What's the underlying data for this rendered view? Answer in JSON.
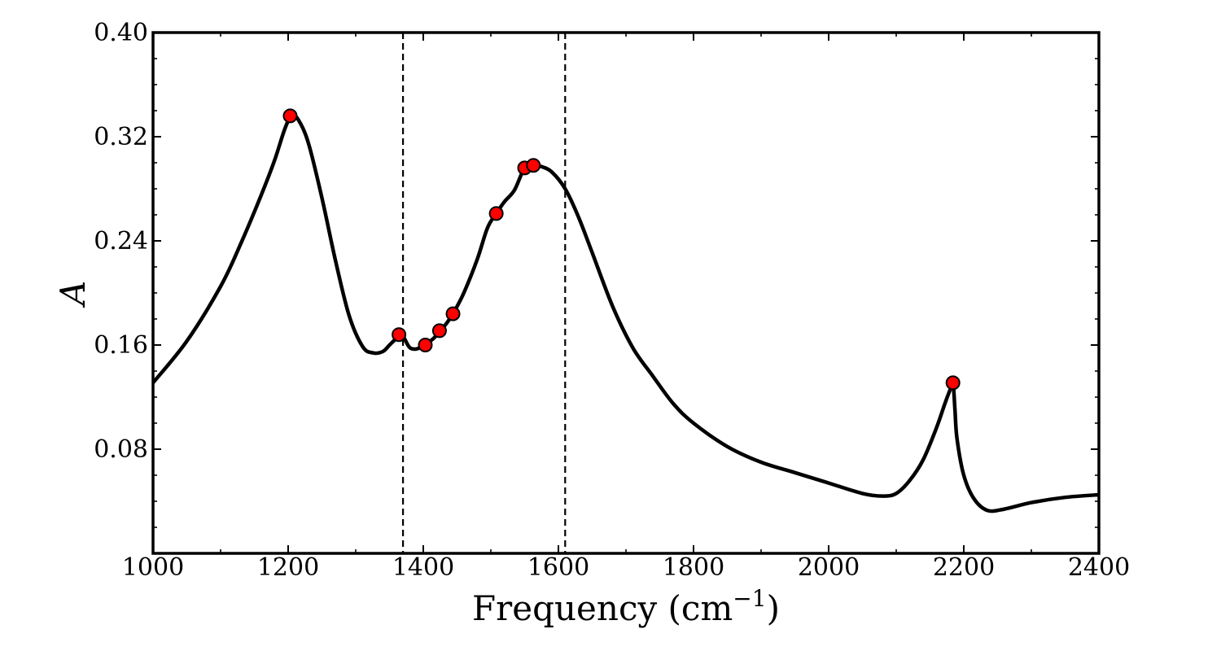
{
  "chart_data": {
    "type": "line",
    "title": "",
    "xlabel": "Frequency (cm",
    "xlabel_sup": "−1",
    "xlabel_end": ")",
    "ylabel": "A",
    "xlim": [
      1000,
      2400
    ],
    "ylim": [
      0,
      0.4
    ],
    "x_ticks": [
      1000,
      1200,
      1400,
      1600,
      1800,
      2000,
      2200,
      2400
    ],
    "x_tick_labels": [
      "1000",
      "1200",
      "1400",
      "1600",
      "1800",
      "2000",
      "2200",
      "2400"
    ],
    "y_ticks": [
      0.08,
      0.16,
      0.24,
      0.32,
      0.4
    ],
    "y_tick_labels": [
      "0.08",
      "0.16",
      "0.24",
      "0.32",
      "0.40"
    ],
    "grid": false,
    "line_color": "#000000",
    "marker_color": "#ff0000",
    "vlines": [
      1370,
      1610
    ],
    "series": [
      {
        "x": [
          1000,
          1050,
          1100,
          1130,
          1160,
          1180,
          1195,
          1205,
          1215,
          1230,
          1250,
          1270,
          1290,
          1310,
          1325,
          1340,
          1350,
          1360,
          1367,
          1372,
          1380,
          1390,
          1402,
          1415,
          1425,
          1435,
          1445,
          1460,
          1480,
          1495,
          1508,
          1520,
          1535,
          1550,
          1563,
          1575,
          1590,
          1610,
          1630,
          1650,
          1680,
          1710,
          1740,
          1770,
          1800,
          1850,
          1900,
          1950,
          2000,
          2050,
          2080,
          2100,
          2120,
          2140,
          2160,
          2172,
          2180,
          2184,
          2187,
          2190,
          2200,
          2215,
          2235,
          2260,
          2300,
          2350,
          2400
        ],
        "y": [
          0.131,
          0.163,
          0.205,
          0.238,
          0.275,
          0.302,
          0.326,
          0.336,
          0.333,
          0.315,
          0.273,
          0.225,
          0.183,
          0.159,
          0.154,
          0.155,
          0.16,
          0.165,
          0.168,
          0.165,
          0.158,
          0.157,
          0.16,
          0.165,
          0.171,
          0.177,
          0.185,
          0.2,
          0.226,
          0.25,
          0.261,
          0.27,
          0.279,
          0.296,
          0.298,
          0.297,
          0.293,
          0.28,
          0.258,
          0.231,
          0.19,
          0.158,
          0.136,
          0.115,
          0.1,
          0.082,
          0.07,
          0.062,
          0.054,
          0.046,
          0.044,
          0.046,
          0.056,
          0.072,
          0.097,
          0.115,
          0.126,
          0.131,
          0.11,
          0.088,
          0.06,
          0.042,
          0.033,
          0.034,
          0.039,
          0.043,
          0.045
        ]
      }
    ],
    "markers": [
      {
        "x": 1203,
        "y": 0.336
      },
      {
        "x": 1364,
        "y": 0.168
      },
      {
        "x": 1403,
        "y": 0.16
      },
      {
        "x": 1424,
        "y": 0.171
      },
      {
        "x": 1444,
        "y": 0.184
      },
      {
        "x": 1508,
        "y": 0.261
      },
      {
        "x": 1550,
        "y": 0.296
      },
      {
        "x": 1563,
        "y": 0.298
      },
      {
        "x": 2184,
        "y": 0.131
      }
    ]
  }
}
